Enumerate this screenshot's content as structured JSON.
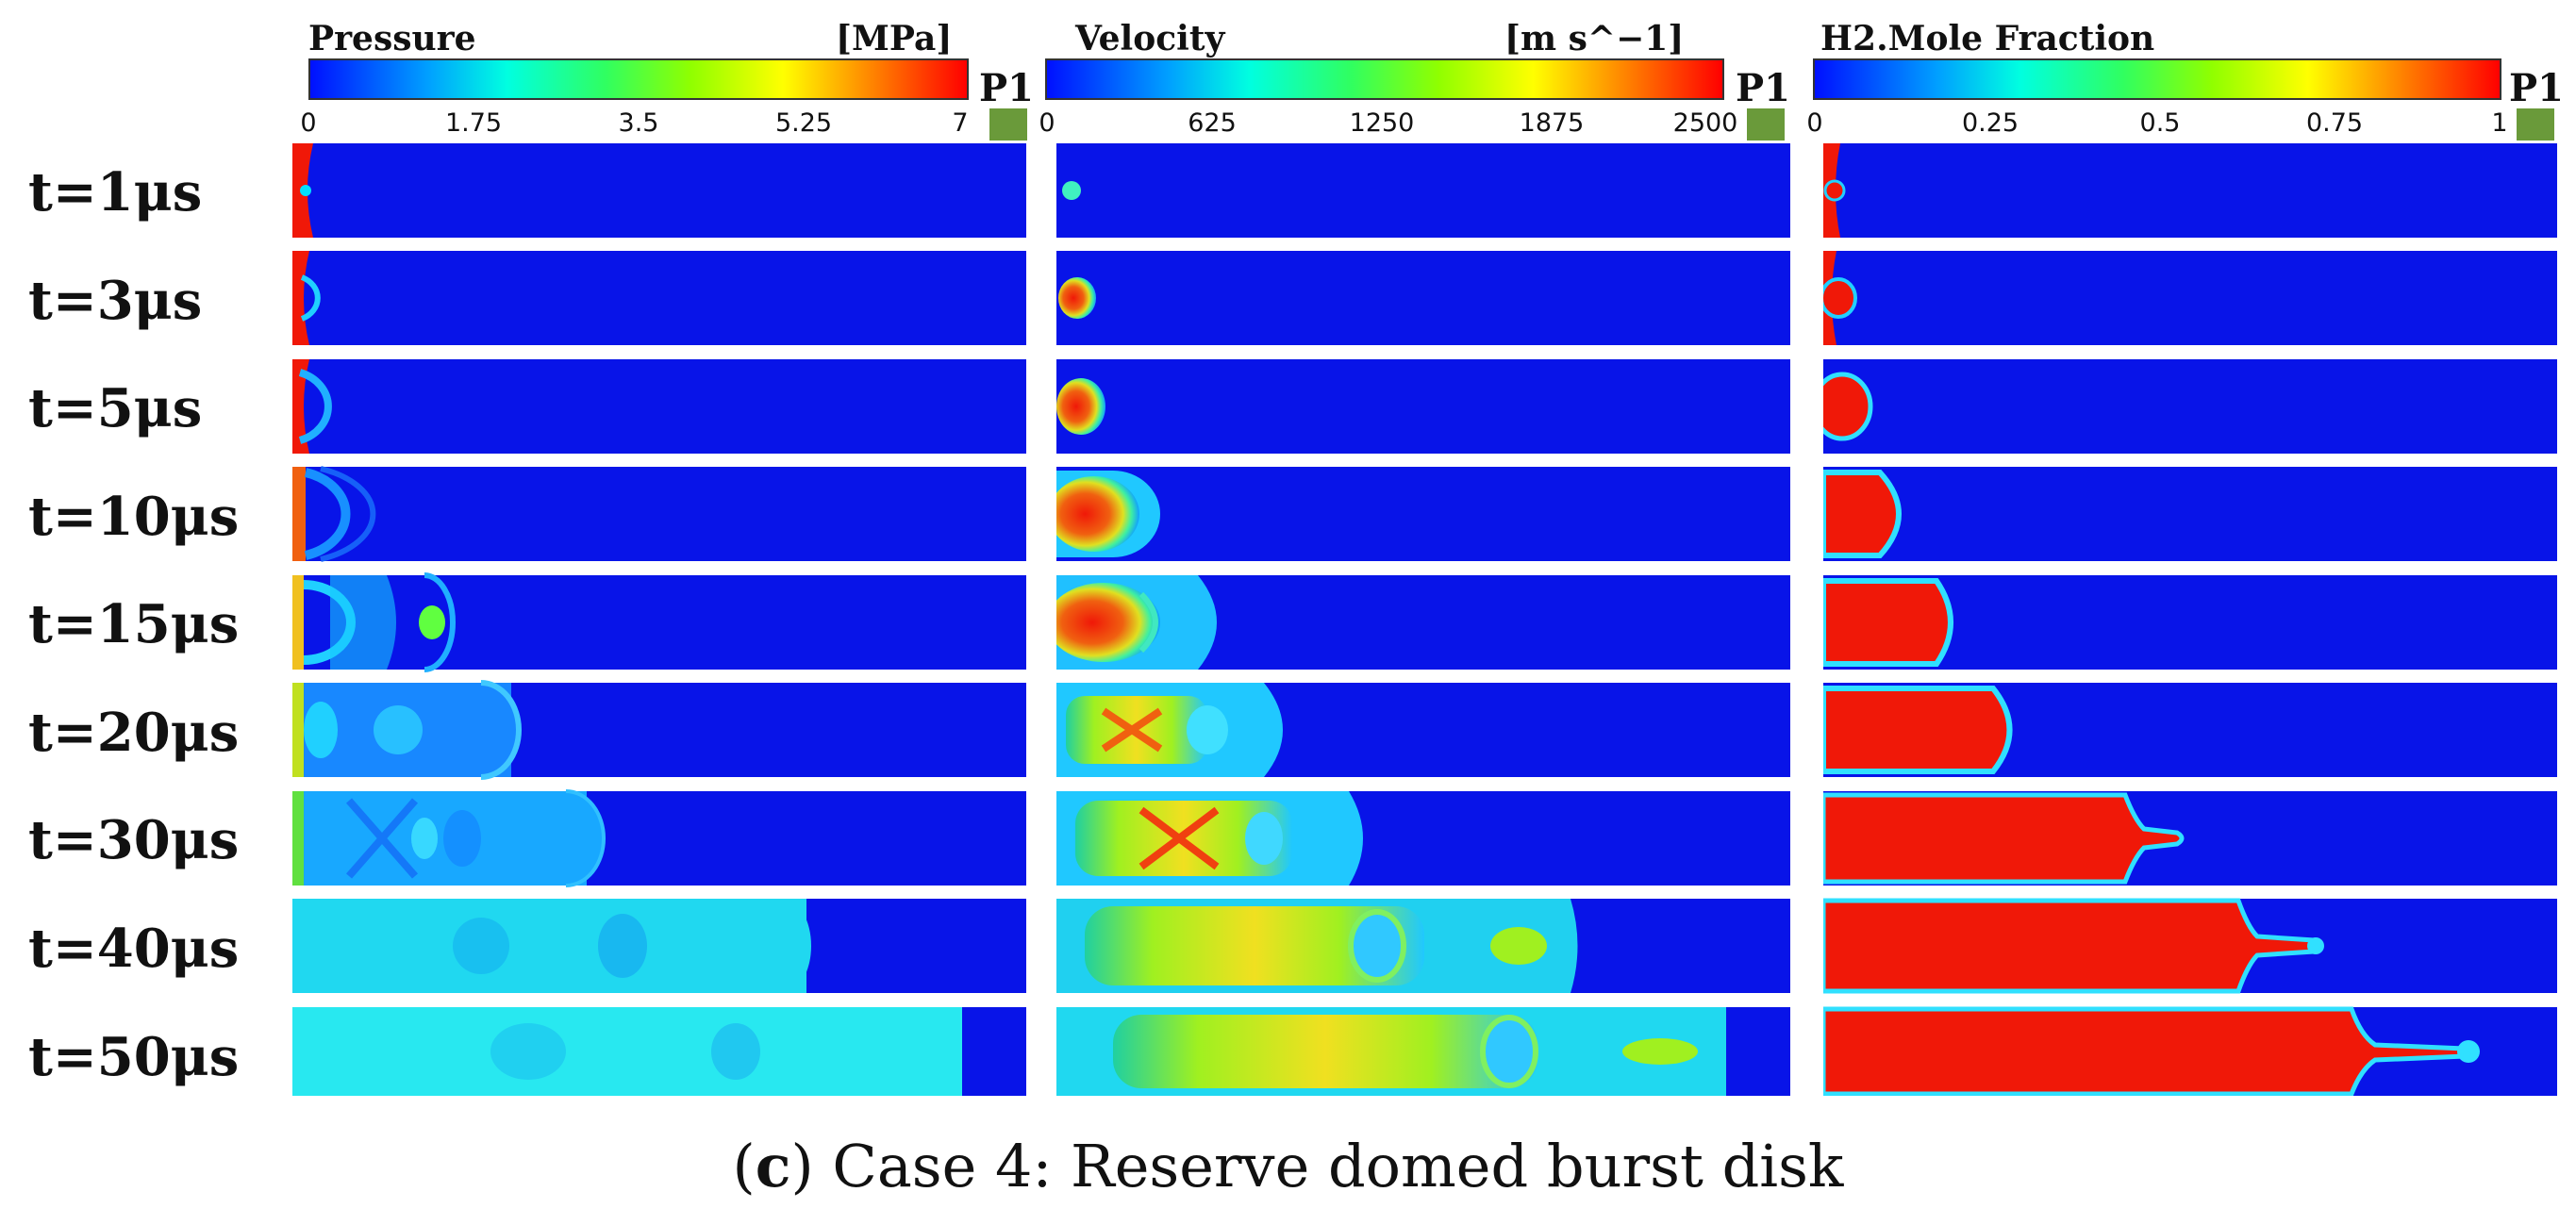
{
  "colormaps": [
    {
      "title": "Pressure",
      "unit": "[MPa]",
      "ticks": [
        "0",
        "1.75",
        "3.5",
        "5.25",
        "7"
      ],
      "marker": "P1"
    },
    {
      "title": "Velocity",
      "unit": "[m s^−1]",
      "ticks": [
        "0",
        "625",
        "1250",
        "1875",
        "2500"
      ],
      "marker": "P1"
    },
    {
      "title": "H2.Mole Fraction",
      "unit": "",
      "ticks": [
        "0",
        "0.25",
        "0.5",
        "0.75",
        "1"
      ],
      "marker": "P1"
    }
  ],
  "time_labels": [
    "t=1μs",
    "t=3μs",
    "t=5μs",
    "t=10μs",
    "t=15μs",
    "t=20μs",
    "t=30μs",
    "t=40μs",
    "t=50μs"
  ],
  "caption": {
    "letter": "c",
    "text": "Case 4: Reserve domed burst disk"
  },
  "colors": {
    "low": "#0814e8",
    "high": "#e81a0a",
    "marker": "#6a9a3a"
  }
}
